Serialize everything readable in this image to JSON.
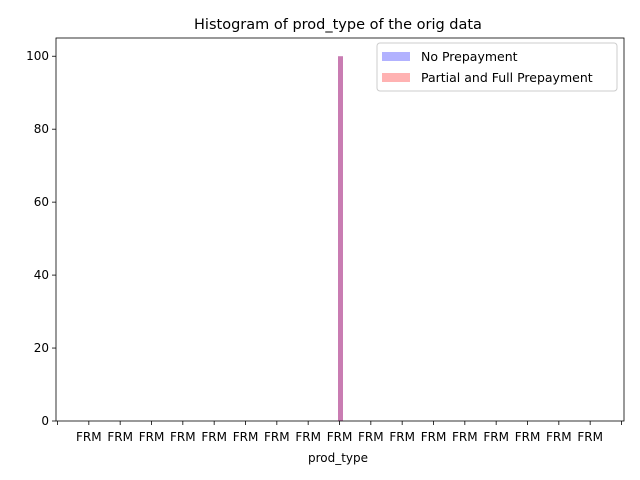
{
  "chart_data": {
    "type": "bar",
    "title": "Histogram of prod_type of the orig data",
    "xlabel": "prod_type",
    "ylabel": "",
    "ylim": [
      0,
      105
    ],
    "y_ticks": [
      0,
      20,
      40,
      60,
      80,
      100
    ],
    "x_tick_labels": [
      "FRM",
      "FRM",
      "FRM",
      "FRM",
      "FRM",
      "FRM",
      "FRM",
      "FRM",
      "FRM",
      "FRM",
      "FRM",
      "FRM",
      "FRM",
      "FRM",
      "FRM",
      "FRM",
      "FRM"
    ],
    "categories": [
      "FRM"
    ],
    "series": [
      {
        "name": "No Prepayment",
        "color": "#0000ff",
        "alpha": 0.3,
        "values": [
          100
        ]
      },
      {
        "name": "Partial and Full Prepayment",
        "color": "#ff0000",
        "alpha": 0.3,
        "values": [
          100
        ]
      }
    ],
    "grid": false,
    "legend_position": "top-right"
  }
}
